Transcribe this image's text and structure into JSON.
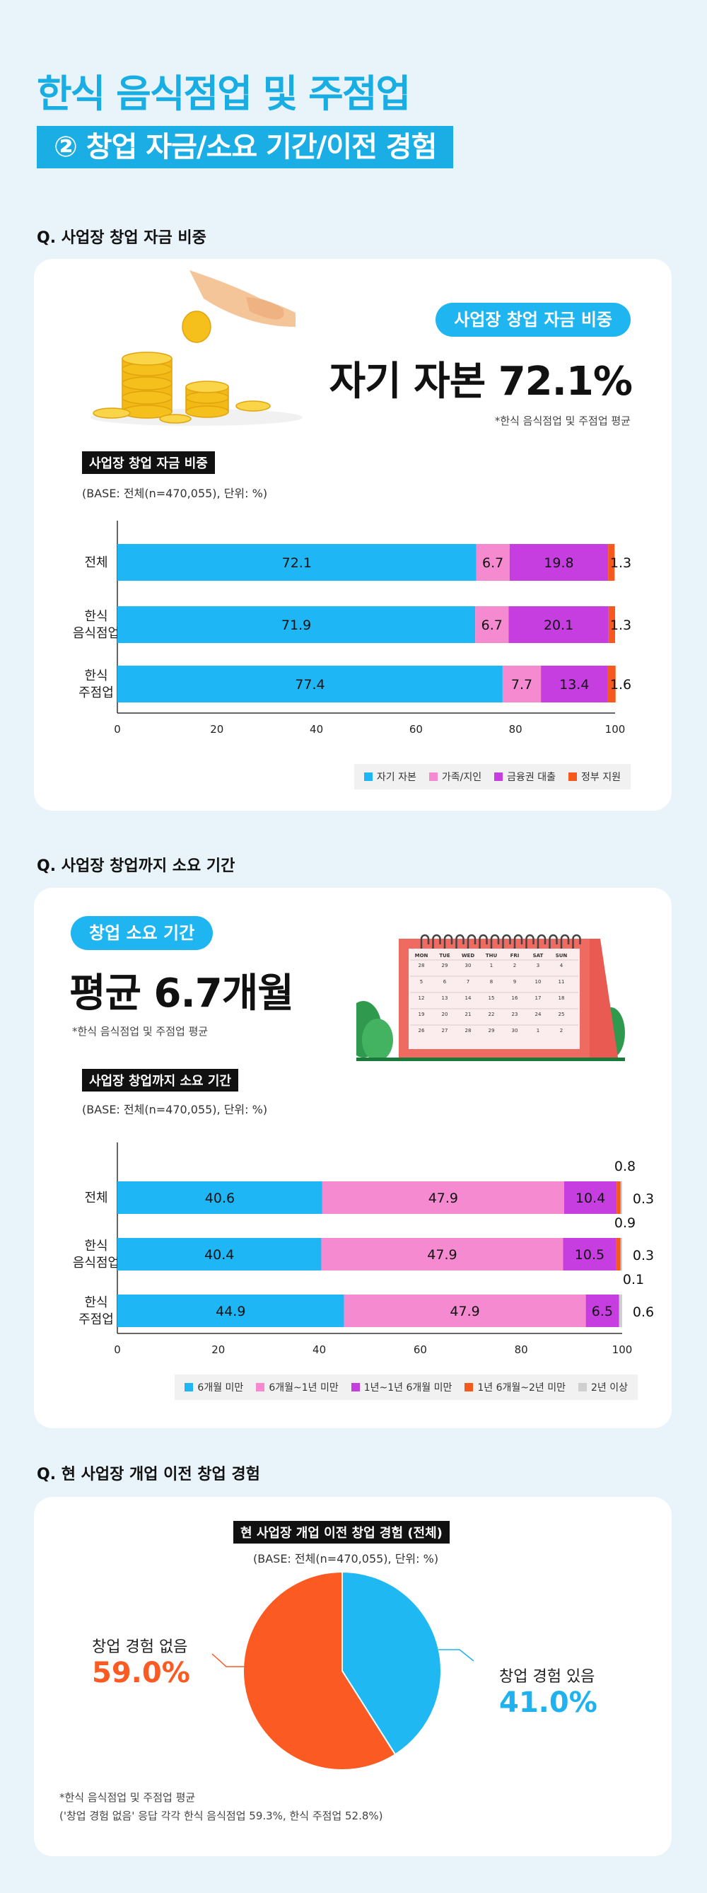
{
  "header": {
    "title": "한식 음식점업 및 주점업",
    "subtitle": "② 창업 자금/소요 기간/이전 경험"
  },
  "section1": {
    "question": "Q. 사업장 창업 자금 비중",
    "pill": "사업장 창업 자금 비중",
    "big_stat": "자기 자본 72.1%",
    "note": "*한식 음식점업 및 주점업 평균",
    "chart_label": "사업장 창업 자금 비중",
    "base": "(BASE: 전체(n=470,055), 단위: %)"
  },
  "section2": {
    "question": "Q. 사업장 창업까지 소요 기간",
    "pill": "창업 소요 기간",
    "big_stat": "평균 6.7개월",
    "note": "*한식 음식점업 및 주점업 평균",
    "chart_label": "사업장 창업까지 소요 기간",
    "base": "(BASE: 전체(n=470,055), 단위: %)",
    "calendar": {
      "days": [
        "MON",
        "TUE",
        "WED",
        "THU",
        "FRI",
        "SAT",
        "SUN"
      ],
      "dates": [
        "28",
        "29",
        "30",
        "1",
        "2",
        "3",
        "4",
        "5",
        "6",
        "7",
        "8",
        "9",
        "10",
        "11",
        "12",
        "13",
        "14",
        "15",
        "16",
        "17",
        "18",
        "19",
        "20",
        "21",
        "22",
        "23",
        "24",
        "25",
        "26",
        "27",
        "28",
        "29",
        "30",
        "1",
        "2"
      ]
    }
  },
  "section3": {
    "question": "Q. 현 사업장 개업 이전 창업 경험",
    "chart_label": "현 사업장 개업 이전 창업 경험 (전체)",
    "base": "(BASE: 전체(n=470,055), 단위: %)",
    "label_no": "창업 경험 없음",
    "value_no": "59.0%",
    "label_yes": "창업 경험 있음",
    "value_yes": "41.0%",
    "note1": "*한식 음식점업 및 주점업 평균",
    "note2": "('창업 경험 없음' 응답 각각 한식 음식점업 59.3%, 한식 주점업 52.8%)"
  },
  "chart_data": [
    {
      "type": "bar",
      "orientation": "horizontal",
      "stacked": true,
      "title": "사업장 창업 자금 비중",
      "categories": [
        "전체",
        "한식\n음식점업",
        "한식\n주점업"
      ],
      "series": [
        {
          "name": "자기 자본",
          "color": "#1eb6f4",
          "values": [
            72.1,
            71.9,
            77.4
          ]
        },
        {
          "name": "가족/지인",
          "color": "#f58ad0",
          "values": [
            6.7,
            6.7,
            7.7
          ]
        },
        {
          "name": "금융권 대출",
          "color": "#c63ee0",
          "values": [
            19.8,
            20.1,
            13.4
          ]
        },
        {
          "name": "정부 지원",
          "color": "#f5591c",
          "values": [
            1.3,
            1.3,
            1.6
          ]
        }
      ],
      "xlim": [
        0,
        100
      ],
      "xticks": [
        "0",
        "20",
        "40",
        "60",
        "80",
        "100"
      ],
      "legend": "bottom-right"
    },
    {
      "type": "bar",
      "orientation": "horizontal",
      "stacked": true,
      "title": "사업장 창업까지 소요 기간",
      "categories": [
        "전체",
        "한식\n음식점업",
        "한식\n주점업"
      ],
      "series": [
        {
          "name": "6개월 미만",
          "color": "#1eb6f4",
          "values": [
            40.6,
            40.4,
            44.9
          ]
        },
        {
          "name": "6개월~1년 미만",
          "color": "#f58ad0",
          "values": [
            47.9,
            47.9,
            47.9
          ]
        },
        {
          "name": "1년~1년 6개월 미만",
          "color": "#c63ee0",
          "values": [
            10.4,
            10.5,
            6.5
          ]
        },
        {
          "name": "1년 6개월~2년 미만",
          "color": "#f5591c",
          "values": [
            0.8,
            0.9,
            0.1
          ]
        },
        {
          "name": "2년 이상",
          "color": "#cfcfcf",
          "values": [
            0.3,
            0.3,
            0.6
          ]
        }
      ],
      "xlim": [
        0,
        100
      ],
      "xticks": [
        "0",
        "20",
        "40",
        "60",
        "80",
        "100"
      ],
      "legend": "bottom-right"
    },
    {
      "type": "pie",
      "title": "현 사업장 개업 이전 창업 경험 (전체)",
      "slices": [
        {
          "name": "창업 경험 있음",
          "value": 41.0,
          "color": "#1fb8f3"
        },
        {
          "name": "창업 경험 없음",
          "value": 59.0,
          "color": "#fb5a22"
        }
      ]
    }
  ]
}
